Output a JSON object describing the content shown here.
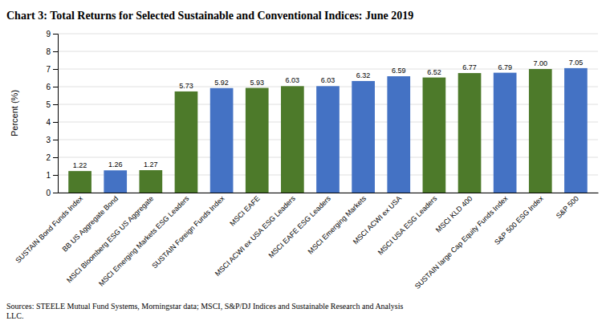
{
  "chart_data": {
    "type": "bar",
    "title": "Chart 3:  Total Returns for Selected Sustainable and Conventional Indices:  June 2019",
    "ylabel": "Percent (%)",
    "categories": [
      "SUSTAIN Bond Funds Index",
      "BB US Aggregate Bond",
      "MSCI Bloomberg ESG US Aggregate",
      "MSCI Emerging Markets ESG Leaders",
      "SUSTAIN Foreign Funds Index",
      "MSCI EAFE",
      "MSCI ACWI ex USA ESG Leaders",
      "MSCI EAFE ESG Leaders",
      "MSCI Emerging Markets",
      "MSCI ACWI ex USA",
      "MSCI USA ESG Leaders",
      "MSCI KLD 400",
      "SUSTAIN large Cap Equity Funds Index",
      "S&P 500 ESG Index",
      "S&P 500"
    ],
    "values": [
      1.22,
      1.26,
      1.27,
      5.73,
      5.92,
      5.93,
      6.03,
      6.03,
      6.32,
      6.59,
      6.52,
      6.77,
      6.79,
      7.0,
      7.05
    ],
    "value_labels": [
      "1.22",
      "1.26",
      "1.27",
      "5.73",
      "5.92",
      "5.93",
      "6.03",
      "6.03",
      "6.32",
      "6.59",
      "6.52",
      "6.77",
      "6.79",
      "7.00",
      "7.05"
    ],
    "colors": [
      "#4d7a2a",
      "#4472c4",
      "#4d7a2a",
      "#4d7a2a",
      "#4472c4",
      "#4d7a2a",
      "#4d7a2a",
      "#4472c4",
      "#4472c4",
      "#4472c4",
      "#4d7a2a",
      "#4d7a2a",
      "#4472c4",
      "#4d7a2a",
      "#4472c4"
    ],
    "ylim": [
      0,
      9
    ],
    "yticks": [
      0,
      1,
      2,
      3,
      4,
      5,
      6,
      7,
      8,
      9
    ],
    "grid": true,
    "data_labels": true,
    "annotations": [
      "Sources:  STEELE Mutual Fund Systems, Morningstar data; MSCI, S&P/DJ Indices and Sustainable Research and Analysis\nLLC."
    ]
  }
}
